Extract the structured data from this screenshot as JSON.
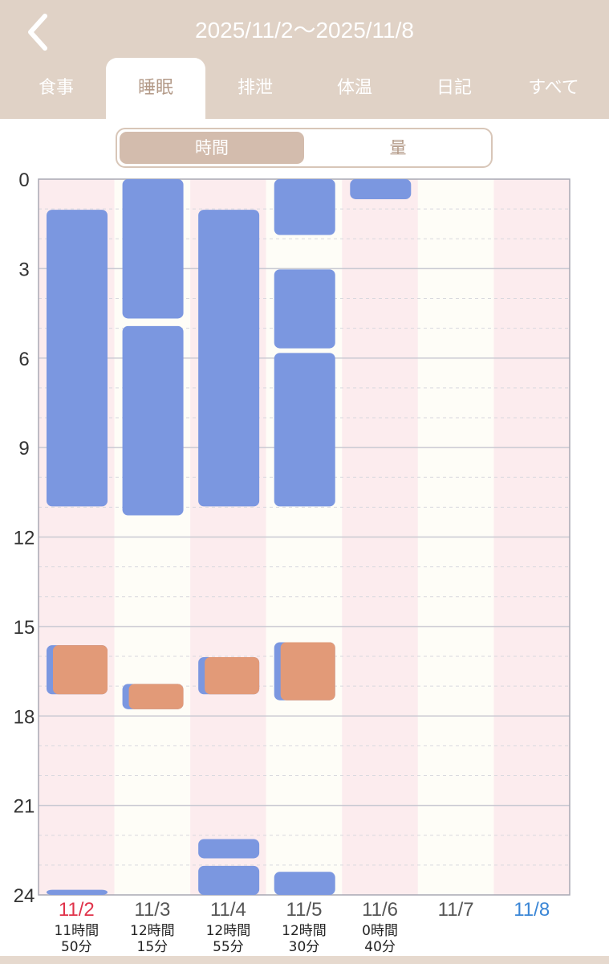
{
  "header": {
    "title": "2025/11/2〜2025/11/8",
    "back_icon": "chevron-left-icon"
  },
  "tabs": [
    {
      "id": "meal",
      "label": "食事"
    },
    {
      "id": "sleep",
      "label": "睡眠",
      "active": true
    },
    {
      "id": "excretion",
      "label": "排泄"
    },
    {
      "id": "temperature",
      "label": "体温"
    },
    {
      "id": "diary",
      "label": "日記"
    },
    {
      "id": "all",
      "label": "すべて"
    }
  ],
  "segment": {
    "options": [
      "時間",
      "量"
    ],
    "selected": "時間"
  },
  "colors": {
    "header_bg": "#e0d2c6",
    "sleep_block": "#7b97e0",
    "nap_block": "#e29a78",
    "sunday_label": "#e0334a",
    "saturday_label": "#3a86d6",
    "weekday_label": "#555555",
    "col_pink": "#fcecee",
    "col_cream": "#fefdf7"
  },
  "chart_data": {
    "type": "timeline",
    "y_axis": {
      "min": 0,
      "max": 24,
      "ticks": [
        0,
        3,
        6,
        9,
        12,
        15,
        18,
        21,
        24
      ],
      "reversed": true
    },
    "days": [
      {
        "date": "11/2",
        "weekday": "sun",
        "total": [
          "11時間",
          "50分"
        ],
        "blocks": [
          {
            "start": 1.0,
            "end": 11.0,
            "kind": "sleep"
          },
          {
            "start": 15.6,
            "end": 17.3,
            "kind": "sleep",
            "overlay": "nap"
          },
          {
            "start": 23.8,
            "end": 24.0,
            "kind": "sleep"
          }
        ]
      },
      {
        "date": "11/3",
        "weekday": "mon",
        "total": [
          "12時間",
          "15分"
        ],
        "blocks": [
          {
            "start": 0.0,
            "end": 4.7,
            "kind": "sleep"
          },
          {
            "start": 4.9,
            "end": 11.3,
            "kind": "sleep"
          },
          {
            "start": 16.9,
            "end": 17.8,
            "kind": "sleep",
            "overlay": "nap"
          }
        ]
      },
      {
        "date": "11/4",
        "weekday": "tue",
        "total": [
          "12時間",
          "55分"
        ],
        "blocks": [
          {
            "start": 1.0,
            "end": 11.0,
            "kind": "sleep"
          },
          {
            "start": 16.0,
            "end": 17.3,
            "kind": "sleep",
            "overlay": "nap"
          },
          {
            "start": 22.1,
            "end": 22.8,
            "kind": "sleep"
          },
          {
            "start": 23.0,
            "end": 24.0,
            "kind": "sleep"
          }
        ]
      },
      {
        "date": "11/5",
        "weekday": "wed",
        "total": [
          "12時間",
          "30分"
        ],
        "blocks": [
          {
            "start": 0.0,
            "end": 1.9,
            "kind": "sleep"
          },
          {
            "start": 3.0,
            "end": 5.7,
            "kind": "sleep"
          },
          {
            "start": 5.8,
            "end": 11.0,
            "kind": "sleep"
          },
          {
            "start": 15.5,
            "end": 17.5,
            "kind": "sleep",
            "overlay": "nap"
          },
          {
            "start": 23.2,
            "end": 24.0,
            "kind": "sleep"
          }
        ]
      },
      {
        "date": "11/6",
        "weekday": "thu",
        "total": [
          "0時間",
          "40分"
        ],
        "blocks": [
          {
            "start": 0.0,
            "end": 0.7,
            "kind": "sleep"
          }
        ]
      },
      {
        "date": "11/7",
        "weekday": "fri",
        "total": [],
        "blocks": []
      },
      {
        "date": "11/8",
        "weekday": "sat",
        "total": [],
        "blocks": []
      }
    ]
  }
}
